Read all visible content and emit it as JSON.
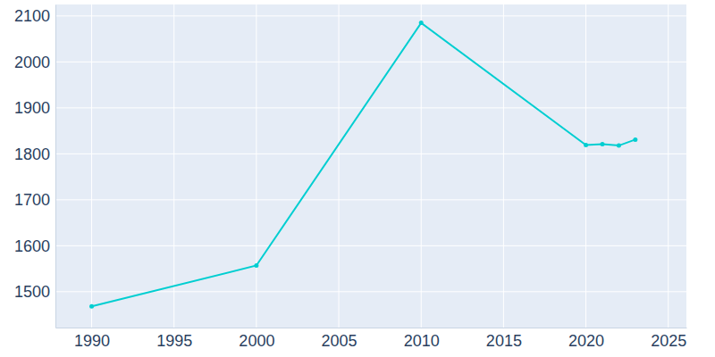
{
  "chart_data": {
    "type": "line",
    "x": [
      1990,
      2000,
      2010,
      2020,
      2021,
      2022,
      2023
    ],
    "values": [
      1468,
      1557,
      2085,
      1819,
      1821,
      1818,
      1831
    ],
    "color": "#00ced1",
    "marker": "circle",
    "xlim": [
      1987.8,
      2026.1
    ],
    "ylim": [
      1422,
      2125
    ],
    "xticks": [
      1990,
      1995,
      2000,
      2005,
      2010,
      2015,
      2020,
      2025
    ],
    "yticks": [
      1500,
      1600,
      1700,
      1800,
      1900,
      2000,
      2100
    ],
    "grid": true
  }
}
